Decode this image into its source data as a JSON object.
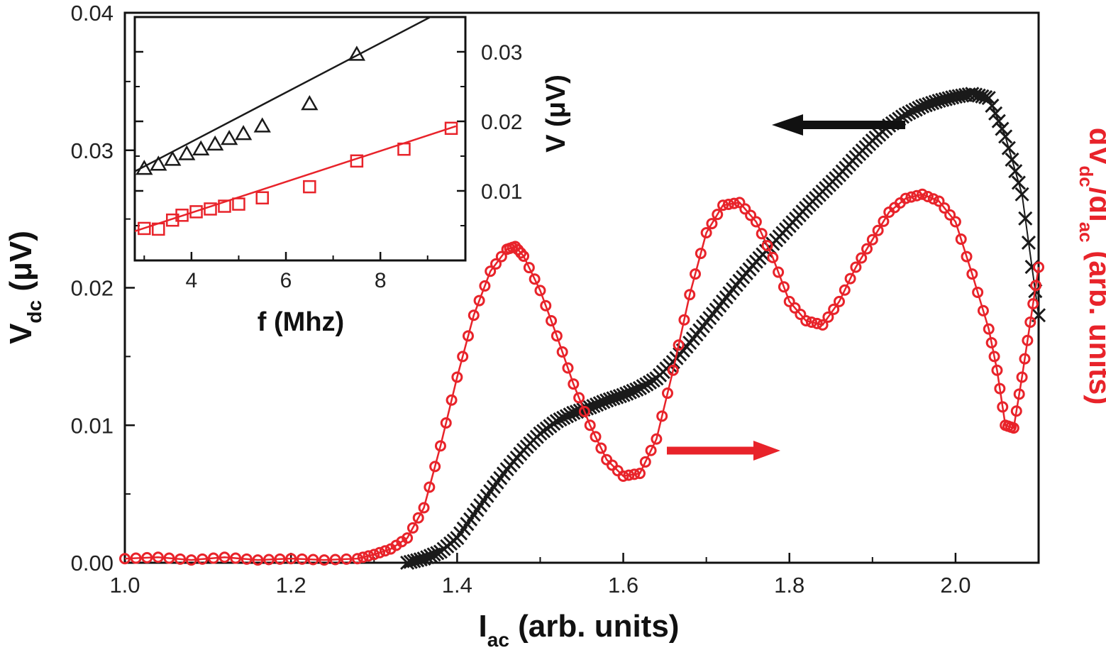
{
  "chart_data": {
    "type": "scatter",
    "main": {
      "xlabel": {
        "main": "I",
        "sub": "ac",
        "rest": " (arb. units)"
      },
      "ylabel_left": {
        "main": "V",
        "sub": "dc",
        "rest": " (μV)"
      },
      "ylabel_right": {
        "p1": "dV",
        "sub1": "dc",
        "p2": "/dI",
        "sub2": "ac",
        "p3": " (arb. units)"
      },
      "xlim": [
        1.0,
        2.1
      ],
      "ylim": [
        0.0,
        0.04
      ],
      "xticks": [
        "1.0",
        "1.2",
        "1.4",
        "1.6",
        "1.8",
        "2.0"
      ],
      "yticks": [
        "0.00",
        "0.01",
        "0.02",
        "0.03",
        "0.04"
      ],
      "series": [
        {
          "name": "Vdc",
          "axis": "left",
          "marker": "x",
          "color": "#1a1a1a",
          "points": [
            [
              1.34,
              0.0
            ],
            [
              1.36,
              0.0003
            ],
            [
              1.38,
              0.0008
            ],
            [
              1.4,
              0.0018
            ],
            [
              1.42,
              0.0035
            ],
            [
              1.44,
              0.0052
            ],
            [
              1.46,
              0.0068
            ],
            [
              1.48,
              0.0082
            ],
            [
              1.5,
              0.0094
            ],
            [
              1.52,
              0.0103
            ],
            [
              1.54,
              0.0109
            ],
            [
              1.56,
              0.0113
            ],
            [
              1.58,
              0.0118
            ],
            [
              1.6,
              0.0122
            ],
            [
              1.62,
              0.0127
            ],
            [
              1.64,
              0.0134
            ],
            [
              1.66,
              0.0146
            ],
            [
              1.68,
              0.016
            ],
            [
              1.7,
              0.0175
            ],
            [
              1.72,
              0.019
            ],
            [
              1.74,
              0.0205
            ],
            [
              1.76,
              0.0219
            ],
            [
              1.78,
              0.0232
            ],
            [
              1.8,
              0.0245
            ],
            [
              1.82,
              0.0258
            ],
            [
              1.84,
              0.027
            ],
            [
              1.86,
              0.0282
            ],
            [
              1.88,
              0.0295
            ],
            [
              1.9,
              0.0307
            ],
            [
              1.92,
              0.0318
            ],
            [
              1.94,
              0.0326
            ],
            [
              1.96,
              0.0332
            ],
            [
              1.98,
              0.0336
            ],
            [
              2.0,
              0.0339
            ],
            [
              2.02,
              0.0341
            ],
            [
              2.04,
              0.0338
            ],
            [
              2.06,
              0.031
            ],
            [
              2.08,
              0.0268
            ],
            [
              2.1,
              0.018
            ]
          ]
        },
        {
          "name": "dVdc/dIac",
          "axis": "right",
          "marker": "o",
          "color": "#e8232a",
          "points": [
            [
              1.0,
              0.0003
            ],
            [
              1.04,
              0.0004
            ],
            [
              1.08,
              0.0002
            ],
            [
              1.12,
              0.0004
            ],
            [
              1.16,
              0.0002
            ],
            [
              1.2,
              0.0003
            ],
            [
              1.24,
              0.0002
            ],
            [
              1.28,
              0.0003
            ],
            [
              1.3,
              0.0006
            ],
            [
              1.32,
              0.001
            ],
            [
              1.34,
              0.0018
            ],
            [
              1.36,
              0.004
            ],
            [
              1.38,
              0.0085
            ],
            [
              1.4,
              0.0135
            ],
            [
              1.42,
              0.018
            ],
            [
              1.44,
              0.0212
            ],
            [
              1.46,
              0.0228
            ],
            [
              1.47,
              0.023
            ],
            [
              1.48,
              0.0223
            ],
            [
              1.5,
              0.0198
            ],
            [
              1.52,
              0.0165
            ],
            [
              1.54,
              0.013
            ],
            [
              1.56,
              0.01
            ],
            [
              1.58,
              0.0075
            ],
            [
              1.6,
              0.0063
            ],
            [
              1.62,
              0.0065
            ],
            [
              1.64,
              0.009
            ],
            [
              1.66,
              0.014
            ],
            [
              1.68,
              0.0195
            ],
            [
              1.7,
              0.024
            ],
            [
              1.72,
              0.026
            ],
            [
              1.74,
              0.0262
            ],
            [
              1.76,
              0.0248
            ],
            [
              1.78,
              0.0222
            ],
            [
              1.8,
              0.019
            ],
            [
              1.82,
              0.0176
            ],
            [
              1.84,
              0.0173
            ],
            [
              1.86,
              0.019
            ],
            [
              1.88,
              0.0215
            ],
            [
              1.9,
              0.0235
            ],
            [
              1.92,
              0.0255
            ],
            [
              1.94,
              0.0265
            ],
            [
              1.96,
              0.0268
            ],
            [
              1.98,
              0.0263
            ],
            [
              2.0,
              0.0248
            ],
            [
              2.02,
              0.021
            ],
            [
              2.04,
              0.017
            ],
            [
              2.05,
              0.014
            ],
            [
              2.06,
              0.01
            ],
            [
              2.07,
              0.0098
            ],
            [
              2.08,
              0.0135
            ],
            [
              2.09,
              0.0175
            ],
            [
              2.1,
              0.0215
            ]
          ]
        }
      ],
      "annotations": [
        {
          "text": "arrow-left",
          "points_to": "left axis",
          "color": "#111111"
        },
        {
          "text": "arrow-right",
          "points_to": "right axis",
          "color": "#e8232a"
        }
      ]
    },
    "inset": {
      "xlabel": "f (Mhz)",
      "ylabel": {
        "main": "V",
        "rest": " (μV)"
      },
      "xlim": [
        2.8,
        9.8
      ],
      "ylim": [
        0.0,
        0.035
      ],
      "xticks": [
        "4",
        "6",
        "8"
      ],
      "yticks": [
        "0.01",
        "0.02",
        "0.03"
      ],
      "series": [
        {
          "name": "triangles",
          "marker": "triangle",
          "color": "#1a1a1a",
          "points": [
            [
              3.0,
              0.0132
            ],
            [
              3.3,
              0.0138
            ],
            [
              3.6,
              0.0145
            ],
            [
              3.9,
              0.0153
            ],
            [
              4.2,
              0.016
            ],
            [
              4.5,
              0.0167
            ],
            [
              4.8,
              0.0175
            ],
            [
              5.1,
              0.0182
            ],
            [
              5.5,
              0.0193
            ],
            [
              6.5,
              0.0225
            ],
            [
              7.5,
              0.0296
            ]
          ],
          "fit_line": [
            [
              2.8,
              0.0128
            ],
            [
              9.2,
              0.0355
            ]
          ]
        },
        {
          "name": "squares",
          "marker": "square",
          "color": "#e8232a",
          "points": [
            [
              3.0,
              0.0046
            ],
            [
              3.3,
              0.0045
            ],
            [
              3.6,
              0.0058
            ],
            [
              3.8,
              0.0065
            ],
            [
              4.1,
              0.007
            ],
            [
              4.4,
              0.0074
            ],
            [
              4.7,
              0.0078
            ],
            [
              5.0,
              0.0081
            ],
            [
              5.5,
              0.009
            ],
            [
              6.5,
              0.0106
            ],
            [
              7.5,
              0.0143
            ],
            [
              8.5,
              0.016
            ],
            [
              9.5,
              0.019
            ]
          ],
          "fit_line": [
            [
              2.8,
              0.0042
            ],
            [
              9.6,
              0.0193
            ]
          ]
        }
      ]
    }
  }
}
